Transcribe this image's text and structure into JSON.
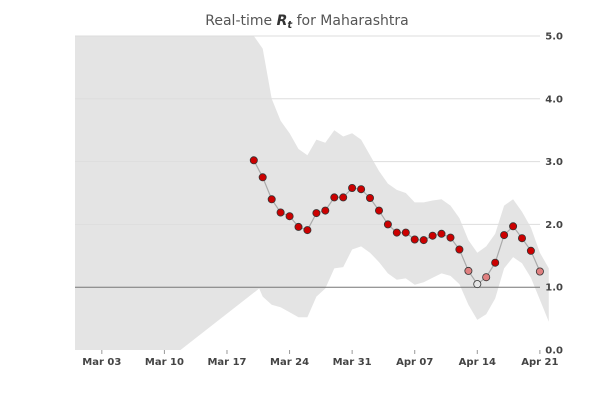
{
  "title": {
    "prefix": "Real-time ",
    "symbol": "R",
    "subscript": "t",
    "suffix": " for Maharashtra"
  },
  "colors": {
    "band": "#e4e4e4",
    "line": "#aaaaaa",
    "point_high": "#cc0000",
    "point_mid": "#e08080",
    "point_low": "#e6e6e6",
    "reference": "#777777"
  },
  "chart_data": {
    "type": "line",
    "x_start": "Feb 29",
    "x_labels": [
      "Mar 03",
      "Mar 10",
      "Mar 17",
      "Mar 24",
      "Mar 31",
      "Apr 07",
      "Apr 14",
      "Apr 21"
    ],
    "x_label_days": [
      3,
      10,
      17,
      24,
      31,
      38,
      45,
      52
    ],
    "y_ticks": [
      "0.0",
      "1.0",
      "2.0",
      "3.0",
      "4.0",
      "5.0"
    ],
    "ylim": [
      0,
      5
    ],
    "y_axis_position": "right",
    "grid": true,
    "reference_line": 1.0,
    "band_upper": [
      [
        0,
        5.0
      ],
      [
        20,
        5.0
      ],
      [
        21,
        4.8
      ],
      [
        22,
        4.0
      ],
      [
        23,
        3.65
      ],
      [
        24,
        3.45
      ],
      [
        25,
        3.2
      ],
      [
        26,
        3.1
      ],
      [
        27,
        3.35
      ],
      [
        28,
        3.3
      ],
      [
        29,
        3.5
      ],
      [
        30,
        3.4
      ],
      [
        31,
        3.45
      ],
      [
        32,
        3.35
      ],
      [
        33,
        3.1
      ],
      [
        34,
        2.85
      ],
      [
        35,
        2.65
      ],
      [
        36,
        2.55
      ],
      [
        37,
        2.5
      ],
      [
        38,
        2.35
      ],
      [
        39,
        2.35
      ],
      [
        40,
        2.38
      ],
      [
        41,
        2.4
      ],
      [
        42,
        2.3
      ],
      [
        43,
        2.1
      ],
      [
        44,
        1.75
      ],
      [
        45,
        1.55
      ],
      [
        46,
        1.65
      ],
      [
        47,
        1.85
      ],
      [
        48,
        2.3
      ],
      [
        49,
        2.4
      ],
      [
        50,
        2.2
      ],
      [
        51,
        1.95
      ],
      [
        52,
        1.55
      ],
      [
        53,
        1.3
      ]
    ],
    "band_lower": [
      [
        0,
        0.0
      ],
      [
        11.8,
        0.0
      ],
      [
        20.6,
        0.98
      ],
      [
        21,
        0.85
      ],
      [
        22,
        0.72
      ],
      [
        23,
        0.68
      ],
      [
        24,
        0.6
      ],
      [
        25,
        0.52
      ],
      [
        26,
        0.52
      ],
      [
        27,
        0.85
      ],
      [
        28,
        0.98
      ],
      [
        29,
        1.3
      ],
      [
        30,
        1.32
      ],
      [
        31,
        1.6
      ],
      [
        32,
        1.65
      ],
      [
        33,
        1.55
      ],
      [
        34,
        1.4
      ],
      [
        35,
        1.22
      ],
      [
        36,
        1.12
      ],
      [
        37,
        1.14
      ],
      [
        38,
        1.04
      ],
      [
        39,
        1.08
      ],
      [
        40,
        1.15
      ],
      [
        41,
        1.22
      ],
      [
        42,
        1.18
      ],
      [
        43,
        1.05
      ],
      [
        44,
        0.72
      ],
      [
        45,
        0.48
      ],
      [
        46,
        0.57
      ],
      [
        47,
        0.82
      ],
      [
        48,
        1.3
      ],
      [
        49,
        1.48
      ],
      [
        50,
        1.38
      ],
      [
        51,
        1.15
      ],
      [
        52,
        0.8
      ],
      [
        53,
        0.45
      ]
    ],
    "series": [
      {
        "x": [
          20,
          21,
          22,
          23,
          24,
          25,
          26,
          27,
          28,
          29,
          30,
          31,
          32,
          33,
          34,
          35,
          36,
          37,
          38,
          39,
          40,
          41,
          42,
          43,
          44,
          45,
          46,
          47,
          48,
          49,
          50,
          51,
          52
        ],
        "values": [
          3.02,
          2.75,
          2.4,
          2.19,
          2.13,
          1.96,
          1.91,
          2.18,
          2.22,
          2.43,
          2.43,
          2.58,
          2.56,
          2.42,
          2.22,
          2.0,
          1.87,
          1.87,
          1.76,
          1.75,
          1.82,
          1.85,
          1.79,
          1.6,
          1.26,
          1.05,
          1.16,
          1.39,
          1.83,
          1.97,
          1.78,
          1.58,
          1.25
        ]
      }
    ]
  }
}
